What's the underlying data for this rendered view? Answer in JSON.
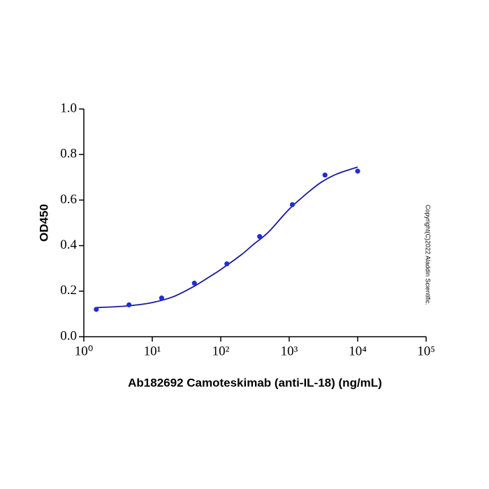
{
  "chart_data": {
    "type": "scatter",
    "x_label": "Ab182692 Camoteskimab (anti-IL-18) (ng/mL)",
    "y_label": "OD450",
    "annotation": "Copyright(C)2022 Aladdin Scientific.",
    "x": [
      1.52,
      4.57,
      13.7,
      41.2,
      123,
      370,
      1111,
      3333,
      10000
    ],
    "values": [
      0.12,
      0.14,
      0.17,
      0.235,
      0.32,
      0.44,
      0.58,
      0.71,
      0.727
    ],
    "color": "#1f2fd0",
    "fit": {
      "x": [
        1.52,
        3,
        5,
        10,
        20,
        40,
        70,
        100,
        200,
        300,
        500,
        1000,
        2000,
        3000,
        5000,
        10000
      ],
      "values": [
        0.128,
        0.132,
        0.137,
        0.15,
        0.175,
        0.22,
        0.265,
        0.295,
        0.36,
        0.405,
        0.46,
        0.56,
        0.64,
        0.68,
        0.715,
        0.745
      ],
      "color": "#1a1a9c"
    },
    "log_x": true,
    "xlim": [
      1,
      100000
    ],
    "xticks": [
      {
        "value": 1,
        "label": "10⁰"
      },
      {
        "value": 10,
        "label": "10¹"
      },
      {
        "value": 100,
        "label": "10²"
      },
      {
        "value": 1000,
        "label": "10³"
      },
      {
        "value": 10000,
        "label": "10⁴"
      },
      {
        "value": 100000,
        "label": "10⁵"
      }
    ],
    "ylim": [
      0,
      1
    ],
    "yticks": [
      {
        "value": 0,
        "label": "0.0"
      },
      0.2,
      0.4,
      0.6,
      0.8,
      {
        "value": 1,
        "label": "1.0"
      }
    ]
  }
}
